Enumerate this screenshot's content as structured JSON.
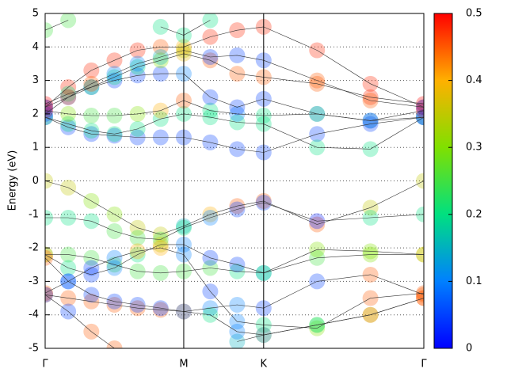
{
  "chart_data": {
    "type": "line",
    "y_label": "Energy (eV)",
    "xlim": [
      0,
      1
    ],
    "xticks": [
      {
        "value": 0,
        "label": "Γ"
      },
      {
        "value": 0.366,
        "label": "M"
      },
      {
        "value": 0.577,
        "label": "K"
      },
      {
        "value": 1,
        "label": "Γ"
      }
    ],
    "ylim": [
      -5,
      5
    ],
    "yticks": [
      -5,
      -4,
      -3,
      -2,
      -1,
      0,
      1,
      2,
      3,
      4,
      5
    ],
    "grid": true,
    "colormap": [
      "#0000ff",
      "#0080ff",
      "#00e080",
      "#80e000",
      "#ffb000",
      "#ff0000"
    ],
    "clim": [
      0,
      0.5
    ],
    "cticks": [
      0,
      0.1,
      0.2,
      0.3,
      0.4,
      0.5
    ],
    "x": [
      0,
      0.061,
      0.122,
      0.183,
      0.244,
      0.305,
      0.366,
      0.436,
      0.507,
      0.577,
      0.718,
      0.859,
      1
    ],
    "series": [
      {
        "values": [
          0,
          -0.2,
          -0.6,
          -1.0,
          -1.4,
          -1.6,
          -1.35,
          -1.0,
          -0.75,
          -0.6,
          -1.3,
          -0.8,
          0
        ],
        "weights": [
          0.35,
          0.35,
          0.3,
          0.3,
          0.35,
          0.35,
          0.15,
          0.4,
          0.45,
          0.45,
          0.45,
          0.35,
          0.35
        ]
      },
      {
        "values": [
          -1.1,
          -1.1,
          -1.2,
          -1.5,
          -1.7,
          -1.75,
          -1.4,
          -1.1,
          -0.85,
          -0.65,
          -1.2,
          -1.1,
          -1.0
        ],
        "weights": [
          0.2,
          0.2,
          0.2,
          0.25,
          0.25,
          0.25,
          0.2,
          0.1,
          0.05,
          0.05,
          0.02,
          0.2,
          0.2
        ]
      },
      {
        "values": [
          -2.2,
          -2.2,
          -2.3,
          -2.5,
          -2.7,
          -2.75,
          -2.7,
          -2.6,
          -2.7,
          -2.75,
          -2.3,
          -2.2,
          -2.2
        ],
        "weights": [
          0.25,
          0.25,
          0.25,
          0.25,
          0.25,
          0.25,
          0.25,
          0.25,
          0.2,
          0.2,
          0.25,
          0.3,
          0.3
        ]
      },
      {
        "values": [
          -2.2,
          -2.6,
          -2.8,
          -2.6,
          -2.2,
          -1.9,
          -1.9,
          -2.3,
          -2.5,
          -2.75,
          -2.05,
          -2.1,
          -2.2
        ],
        "weights": [
          0.4,
          0.2,
          0.05,
          0.1,
          0.2,
          0.35,
          0.1,
          0.05,
          0.05,
          0.15,
          0.3,
          0.3,
          0.4
        ]
      },
      {
        "values": [
          -3.35,
          -3.0,
          -2.6,
          -2.3,
          -2.1,
          -2.0,
          -2.2,
          -3.3,
          -4.2,
          -4.3,
          -4.4,
          -3.5,
          -3.35
        ],
        "weights": [
          0.45,
          0.1,
          0.05,
          0.1,
          0.4,
          0.4,
          0.1,
          0.05,
          0.1,
          0.2,
          0.3,
          0.45,
          0.45
        ]
      },
      {
        "values": [
          -3.4,
          -3.5,
          -3.6,
          -3.7,
          -3.8,
          -3.85,
          -3.9,
          -3.8,
          -3.7,
          -3.8,
          -3.0,
          -2.8,
          -3.4
        ],
        "weights": [
          0.45,
          0.45,
          0.45,
          0.45,
          0.45,
          0.45,
          0.45,
          0.1,
          0.1,
          0.05,
          0.05,
          0.45,
          0.45
        ]
      },
      {
        "values": [
          -3.4,
          -3.9,
          -4.5,
          -5.0,
          null,
          null,
          null,
          null,
          -4.8,
          -4.6,
          -4.3,
          -4.0,
          -3.5
        ],
        "weights": [
          0.05,
          0.05,
          0.45,
          0.45,
          null,
          null,
          null,
          null,
          0.15,
          0.35,
          0.2,
          0.45,
          0.45
        ]
      },
      {
        "values": [
          -2.3,
          -3.0,
          -3.4,
          -3.6,
          -3.7,
          -3.8,
          -3.9,
          -4.0,
          -4.5,
          -4.6,
          -4.3,
          -4.0,
          -3.5
        ],
        "weights": [
          0.45,
          0.05,
          0.05,
          0.05,
          0.05,
          0.05,
          0.1,
          0.2,
          0.1,
          0.1,
          0.25,
          0.35,
          0.45
        ]
      },
      {
        "values": [
          1.9,
          1.6,
          1.4,
          1.35,
          1.3,
          1.3,
          1.3,
          1.15,
          0.95,
          0.85,
          1.4,
          1.7,
          1.9
        ],
        "weights": [
          0.02,
          0.05,
          0.05,
          0.05,
          0.05,
          0.05,
          0.05,
          0.05,
          0.05,
          0.05,
          0.05,
          0.05,
          0.02
        ]
      },
      {
        "values": [
          1.9,
          1.7,
          1.5,
          1.4,
          1.55,
          1.85,
          2.0,
          1.9,
          1.75,
          1.7,
          1.0,
          0.95,
          1.9
        ],
        "weights": [
          0.2,
          0.2,
          0.2,
          0.2,
          0.2,
          0.2,
          0.2,
          0.2,
          0.2,
          0.2,
          0.2,
          0.2,
          0.2
        ]
      },
      {
        "values": [
          2.1,
          2.0,
          1.95,
          1.95,
          2.0,
          2.1,
          2.4,
          2.1,
          2.0,
          1.95,
          2.0,
          1.8,
          2.1
        ],
        "weights": [
          0.5,
          0.3,
          0.25,
          0.25,
          0.3,
          0.4,
          0.45,
          0.2,
          0.1,
          0.2,
          0.25,
          0.15,
          0.5
        ]
      },
      {
        "values": [
          2.0,
          2.5,
          2.8,
          3.0,
          3.15,
          3.2,
          3.2,
          2.5,
          2.2,
          2.45,
          2.0,
          1.8,
          1.9
        ],
        "weights": [
          0.05,
          0.05,
          0.05,
          0.05,
          0.05,
          0.05,
          0.1,
          0.05,
          0.05,
          0.05,
          0.1,
          0.05,
          0.05
        ]
      },
      {
        "values": [
          2.2,
          2.8,
          3.3,
          3.6,
          3.9,
          4.0,
          4.0,
          4.3,
          4.5,
          4.6,
          3.9,
          2.9,
          2.2
        ],
        "weights": [
          0.5,
          0.48,
          0.48,
          0.48,
          0.48,
          0.45,
          0.4,
          0.48,
          0.48,
          0.48,
          0.48,
          0.48,
          0.5
        ]
      },
      {
        "values": [
          2.3,
          2.6,
          2.8,
          3.1,
          3.4,
          3.6,
          3.8,
          3.6,
          3.2,
          3.1,
          2.9,
          2.5,
          2.3
        ],
        "weights": [
          0.5,
          0.2,
          0.2,
          0.2,
          0.2,
          0.3,
          0.38,
          0.45,
          0.45,
          0.45,
          0.45,
          0.48,
          0.5
        ]
      },
      {
        "values": [
          2.2,
          2.5,
          2.9,
          3.2,
          3.5,
          3.7,
          3.9,
          3.7,
          3.75,
          3.6,
          3.0,
          2.4,
          2.2
        ],
        "weights": [
          0.05,
          0.45,
          0.45,
          0.1,
          0.1,
          0.15,
          0.35,
          0.05,
          0.05,
          0.05,
          0.45,
          0.45,
          0.05
        ]
      },
      {
        "values": [
          4.5,
          4.8,
          null,
          null,
          null,
          4.6,
          4.35,
          4.8,
          null,
          null,
          null,
          null,
          null
        ],
        "weights": [
          0.25,
          0.25,
          null,
          null,
          null,
          0.2,
          0.2,
          0.2,
          null,
          null,
          null,
          null,
          null
        ]
      }
    ]
  }
}
